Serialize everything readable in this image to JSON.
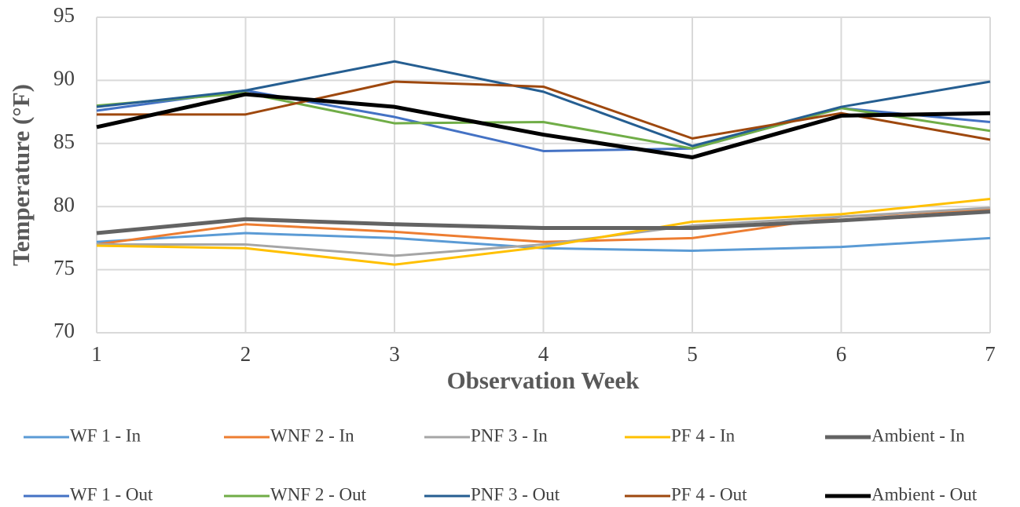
{
  "chart_data": {
    "type": "line",
    "x_label": "Observation Week",
    "y_label": "Temperature  (°F)",
    "x": [
      1,
      2,
      3,
      4,
      5,
      6,
      7
    ],
    "xlim": [
      1,
      7
    ],
    "xticks": [
      1,
      2,
      3,
      4,
      5,
      6,
      7
    ],
    "ylim": [
      70,
      95
    ],
    "yticks": [
      70,
      75,
      80,
      85,
      90,
      95
    ],
    "grid": true,
    "series": [
      {
        "name": "WF 1 - In",
        "color": "#5b9bd5",
        "line_width": 3,
        "values": [
          77.2,
          77.9,
          77.5,
          76.7,
          76.5,
          76.8,
          77.5
        ]
      },
      {
        "name": "WNF 2 - In",
        "color": "#ed7d31",
        "line_width": 3,
        "values": [
          77.0,
          78.6,
          78.0,
          77.2,
          77.5,
          79.2,
          79.8
        ]
      },
      {
        "name": "PNF 3 - In",
        "color": "#a5a5a5",
        "line_width": 3,
        "values": [
          77.0,
          77.0,
          76.1,
          77.0,
          78.5,
          79.2,
          79.9
        ]
      },
      {
        "name": "PF 4 - In",
        "color": "#ffc000",
        "line_width": 3,
        "values": [
          76.9,
          76.7,
          75.4,
          76.8,
          78.8,
          79.4,
          80.6
        ]
      },
      {
        "name": "Ambient - In",
        "color": "#636363",
        "line_width": 5,
        "values": [
          77.9,
          79.0,
          78.6,
          78.3,
          78.3,
          78.9,
          79.6
        ]
      },
      {
        "name": "WF 1 - Out",
        "color": "#4472c4",
        "line_width": 3,
        "values": [
          87.6,
          89.2,
          87.1,
          84.4,
          84.6,
          87.8,
          86.7
        ]
      },
      {
        "name": "WNF 2 - Out",
        "color": "#70ad47",
        "line_width": 3,
        "values": [
          88.0,
          89.0,
          86.6,
          86.7,
          84.6,
          87.8,
          86.0
        ]
      },
      {
        "name": "PNF 3 - Out",
        "color": "#255e91",
        "line_width": 3,
        "values": [
          87.9,
          89.2,
          91.5,
          89.1,
          84.8,
          87.9,
          89.9
        ]
      },
      {
        "name": "PF 4 - Out",
        "color": "#9e480e",
        "line_width": 3,
        "values": [
          87.3,
          87.3,
          89.9,
          89.5,
          85.4,
          87.4,
          85.3
        ]
      },
      {
        "name": "Ambient - Out",
        "color": "#000000",
        "line_width": 5,
        "values": [
          86.3,
          88.9,
          87.9,
          85.7,
          83.9,
          87.2,
          87.4
        ]
      }
    ]
  }
}
